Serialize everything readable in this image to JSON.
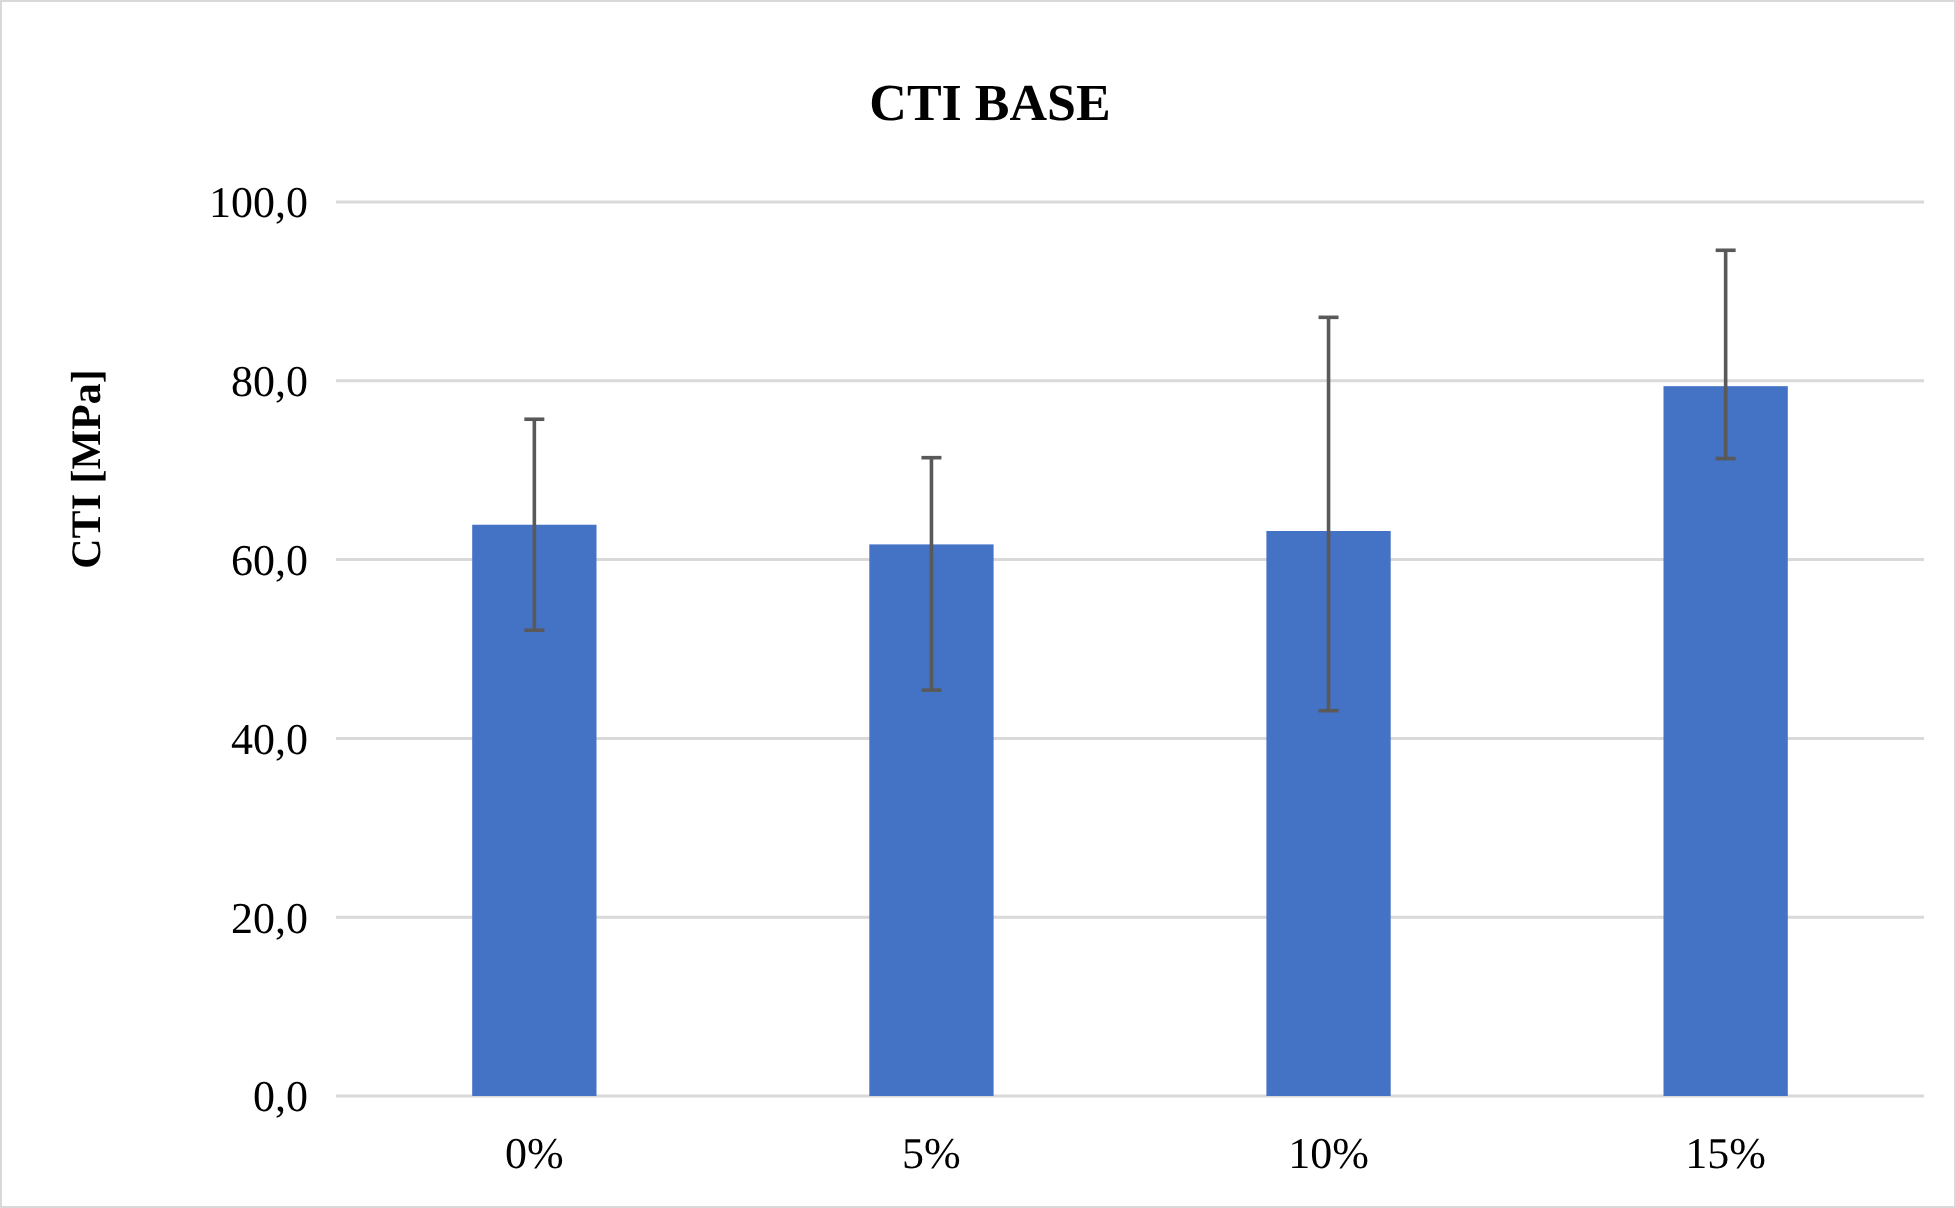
{
  "chart_data": {
    "type": "bar",
    "title": "CTI BASE",
    "ylabel": "CTI [MPa]",
    "categories": [
      "0%",
      "5%",
      "10%",
      "15%"
    ],
    "values": [
      63.9,
      61.7,
      63.2,
      79.4
    ],
    "color": "#4472c4",
    "errors": [
      [
        52.1,
        75.7
      ],
      [
        45.4,
        71.4
      ],
      [
        43.1,
        87.1
      ],
      [
        71.3,
        94.6
      ]
    ],
    "ylim": [
      0,
      100
    ],
    "yticks": [
      {
        "value": 0,
        "label": "0,0"
      },
      {
        "value": 20,
        "label": "20,0"
      },
      {
        "value": 40,
        "label": "40,0"
      },
      {
        "value": 60,
        "label": "60,0"
      },
      {
        "value": 80,
        "label": "80,0"
      },
      {
        "value": 100,
        "label": "100,0"
      }
    ],
    "grid": "y"
  }
}
